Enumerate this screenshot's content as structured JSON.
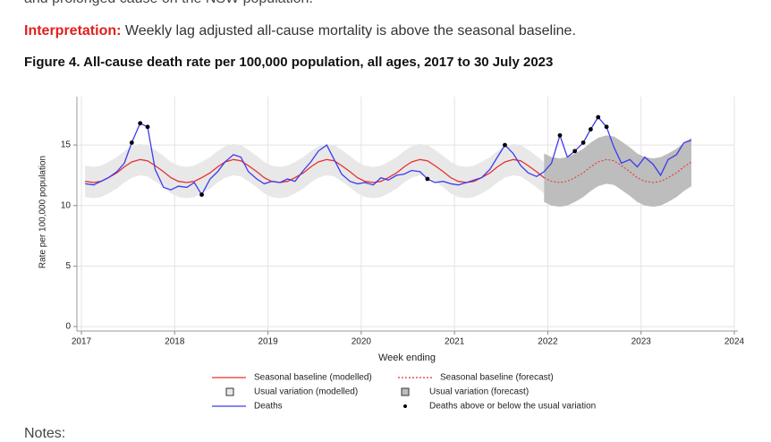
{
  "top_text": "and prolonged cause on the NSW population.",
  "interpretation": {
    "label": "Interpretation:",
    "text": "Weekly lag adjusted all-cause mortality is above the seasonal baseline."
  },
  "figure_title": "Figure 4. All-cause death rate per 100,000 population, all ages, 2017 to 30 July 2023",
  "notes": "Notes:",
  "chart_data": {
    "type": "line",
    "x_label": "Week ending",
    "y_label": "Rate per 100,000 population",
    "xlim": [
      2017,
      2024
    ],
    "xticks": [
      2017,
      2018,
      2019,
      2020,
      2021,
      2022,
      2023,
      2024
    ],
    "ylim": [
      0,
      19
    ],
    "yticks": [
      0,
      5,
      10,
      15
    ],
    "grid": true,
    "x": [
      2017.04,
      2017.13,
      2017.21,
      2017.29,
      2017.38,
      2017.46,
      2017.54,
      2017.63,
      2017.71,
      2017.79,
      2017.88,
      2017.96,
      2018.04,
      2018.13,
      2018.21,
      2018.29,
      2018.38,
      2018.46,
      2018.54,
      2018.63,
      2018.71,
      2018.79,
      2018.88,
      2018.96,
      2019.04,
      2019.13,
      2019.21,
      2019.29,
      2019.38,
      2019.46,
      2019.54,
      2019.63,
      2019.71,
      2019.79,
      2019.88,
      2019.96,
      2020.04,
      2020.13,
      2020.21,
      2020.29,
      2020.38,
      2020.46,
      2020.54,
      2020.63,
      2020.71,
      2020.79,
      2020.88,
      2020.96,
      2021.04,
      2021.13,
      2021.21,
      2021.29,
      2021.38,
      2021.46,
      2021.54,
      2021.63,
      2021.71,
      2021.79,
      2021.88,
      2021.96,
      2022.04,
      2022.13,
      2022.21,
      2022.29,
      2022.38,
      2022.46,
      2022.54,
      2022.63,
      2022.71,
      2022.79,
      2022.88,
      2022.96,
      2023.04,
      2023.13,
      2023.21,
      2023.29,
      2023.38,
      2023.46,
      2023.54
    ],
    "bands": [
      {
        "name": "Usual variation (modelled)",
        "color": "#e8e8e8",
        "lower": [
          10.7,
          10.6,
          10.7,
          11.0,
          11.4,
          11.9,
          12.3,
          12.5,
          12.4,
          12.0,
          11.5,
          11.0,
          10.7,
          10.6,
          10.7,
          11.0,
          11.4,
          11.9,
          12.3,
          12.5,
          12.4,
          12.0,
          11.5,
          11.0,
          10.7,
          10.6,
          10.7,
          11.0,
          11.4,
          11.9,
          12.3,
          12.5,
          12.4,
          12.0,
          11.5,
          11.0,
          10.7,
          10.6,
          10.7,
          11.0,
          11.4,
          11.9,
          12.3,
          12.5,
          12.4,
          12.0,
          11.5,
          11.0,
          10.7,
          10.6,
          10.7,
          11.0,
          11.4,
          11.9,
          12.3,
          12.5,
          12.4,
          12.0,
          11.5,
          11.0,
          null,
          null,
          null,
          null,
          null,
          null,
          null,
          null,
          null,
          null,
          null,
          null,
          null,
          null,
          null,
          null,
          null,
          null,
          null
        ],
        "upper": [
          13.3,
          13.2,
          13.3,
          13.6,
          14.0,
          14.5,
          14.9,
          15.1,
          15.0,
          14.6,
          14.1,
          13.6,
          13.3,
          13.2,
          13.3,
          13.6,
          14.0,
          14.5,
          14.9,
          15.1,
          15.0,
          14.6,
          14.1,
          13.6,
          13.3,
          13.2,
          13.3,
          13.6,
          14.0,
          14.5,
          14.9,
          15.1,
          15.0,
          14.6,
          14.1,
          13.6,
          13.3,
          13.2,
          13.3,
          13.6,
          14.0,
          14.5,
          14.9,
          15.1,
          15.0,
          14.6,
          14.1,
          13.6,
          13.3,
          13.2,
          13.3,
          13.6,
          14.0,
          14.5,
          14.9,
          15.1,
          15.0,
          14.6,
          14.1,
          13.6,
          null,
          null,
          null,
          null,
          null,
          null,
          null,
          null,
          null,
          null,
          null,
          null,
          null,
          null,
          null,
          null,
          null,
          null,
          null
        ]
      },
      {
        "name": "Usual variation (forecast)",
        "color": "#bdbdbd",
        "lower": [
          null,
          null,
          null,
          null,
          null,
          null,
          null,
          null,
          null,
          null,
          null,
          null,
          null,
          null,
          null,
          null,
          null,
          null,
          null,
          null,
          null,
          null,
          null,
          null,
          null,
          null,
          null,
          null,
          null,
          null,
          null,
          null,
          null,
          null,
          null,
          null,
          null,
          null,
          null,
          null,
          null,
          null,
          null,
          null,
          null,
          null,
          null,
          null,
          null,
          null,
          null,
          null,
          null,
          null,
          null,
          null,
          null,
          null,
          null,
          10.3,
          10.0,
          9.9,
          10.0,
          10.3,
          10.7,
          11.2,
          11.6,
          11.8,
          11.7,
          11.3,
          10.8,
          10.3,
          10.0,
          9.9,
          10.0,
          10.3,
          10.7,
          11.2,
          11.6
        ],
        "upper": [
          null,
          null,
          null,
          null,
          null,
          null,
          null,
          null,
          null,
          null,
          null,
          null,
          null,
          null,
          null,
          null,
          null,
          null,
          null,
          null,
          null,
          null,
          null,
          null,
          null,
          null,
          null,
          null,
          null,
          null,
          null,
          null,
          null,
          null,
          null,
          null,
          null,
          null,
          null,
          null,
          null,
          null,
          null,
          null,
          null,
          null,
          null,
          null,
          null,
          null,
          null,
          null,
          null,
          null,
          null,
          null,
          null,
          null,
          null,
          14.3,
          14.0,
          13.9,
          14.0,
          14.3,
          14.7,
          15.2,
          15.6,
          15.8,
          15.7,
          15.3,
          14.8,
          14.3,
          14.0,
          13.9,
          14.0,
          14.3,
          14.7,
          15.2,
          15.6
        ]
      }
    ],
    "series": [
      {
        "name": "Seasonal baseline (modelled)",
        "color": "#e8302c",
        "values": [
          12.0,
          11.9,
          12.0,
          12.3,
          12.7,
          13.2,
          13.6,
          13.8,
          13.7,
          13.3,
          12.8,
          12.3,
          12.0,
          11.9,
          12.0,
          12.3,
          12.7,
          13.2,
          13.6,
          13.8,
          13.7,
          13.3,
          12.8,
          12.3,
          12.0,
          11.9,
          12.0,
          12.3,
          12.7,
          13.2,
          13.6,
          13.8,
          13.7,
          13.3,
          12.8,
          12.3,
          12.0,
          11.9,
          12.0,
          12.3,
          12.7,
          13.2,
          13.6,
          13.8,
          13.7,
          13.3,
          12.8,
          12.3,
          12.0,
          11.9,
          12.0,
          12.3,
          12.7,
          13.2,
          13.6,
          13.8,
          13.7,
          13.3,
          12.8,
          12.3,
          null,
          null,
          null,
          null,
          null,
          null,
          null,
          null,
          null,
          null,
          null,
          null,
          null,
          null,
          null,
          null,
          null,
          null,
          null
        ]
      },
      {
        "name": "Seasonal baseline (forecast)",
        "color": "#e8302c",
        "dashed": true,
        "values": [
          null,
          null,
          null,
          null,
          null,
          null,
          null,
          null,
          null,
          null,
          null,
          null,
          null,
          null,
          null,
          null,
          null,
          null,
          null,
          null,
          null,
          null,
          null,
          null,
          null,
          null,
          null,
          null,
          null,
          null,
          null,
          null,
          null,
          null,
          null,
          null,
          null,
          null,
          null,
          null,
          null,
          null,
          null,
          null,
          null,
          null,
          null,
          null,
          null,
          null,
          null,
          null,
          null,
          null,
          null,
          null,
          null,
          null,
          null,
          12.3,
          12.0,
          11.9,
          12.0,
          12.3,
          12.7,
          13.2,
          13.6,
          13.8,
          13.7,
          13.3,
          12.8,
          12.3,
          12.0,
          11.9,
          12.0,
          12.3,
          12.7,
          13.2,
          13.6
        ]
      },
      {
        "name": "Deaths",
        "color": "#3b3bf0",
        "values": [
          11.8,
          11.7,
          12.0,
          12.3,
          12.8,
          13.5,
          15.2,
          16.8,
          16.5,
          13.0,
          11.5,
          11.3,
          11.6,
          11.5,
          11.9,
          10.9,
          12.2,
          12.8,
          13.6,
          14.2,
          14.0,
          12.8,
          12.2,
          11.8,
          12.0,
          11.9,
          12.2,
          12.0,
          12.9,
          13.6,
          14.5,
          15.0,
          13.8,
          12.6,
          12.0,
          11.8,
          11.9,
          11.7,
          12.3,
          12.1,
          12.5,
          12.6,
          12.9,
          12.8,
          12.2,
          11.9,
          12.0,
          11.8,
          11.7,
          11.9,
          12.1,
          12.3,
          13.0,
          14.0,
          15.0,
          14.3,
          13.3,
          12.7,
          12.4,
          12.8,
          13.5,
          15.8,
          14.0,
          14.5,
          15.2,
          16.3,
          17.3,
          16.5,
          14.8,
          13.5,
          13.8,
          13.2,
          14.0,
          13.4,
          12.5,
          13.8,
          14.2,
          15.2,
          15.4
        ]
      },
      {
        "name": "Deaths above or below the usual variation",
        "color": "#000000",
        "markers_only": true,
        "values": [
          null,
          null,
          null,
          null,
          null,
          null,
          15.2,
          16.8,
          16.5,
          null,
          null,
          null,
          null,
          null,
          null,
          10.9,
          null,
          null,
          null,
          null,
          null,
          null,
          null,
          null,
          null,
          null,
          null,
          null,
          null,
          null,
          null,
          null,
          null,
          null,
          null,
          null,
          null,
          null,
          null,
          null,
          null,
          null,
          null,
          null,
          12.2,
          null,
          null,
          null,
          null,
          null,
          null,
          null,
          null,
          null,
          15.0,
          null,
          null,
          null,
          null,
          null,
          null,
          15.8,
          null,
          14.5,
          15.2,
          16.3,
          17.3,
          16.5,
          null,
          null,
          null,
          null,
          null,
          null,
          null,
          null,
          null,
          null,
          null
        ]
      }
    ]
  }
}
